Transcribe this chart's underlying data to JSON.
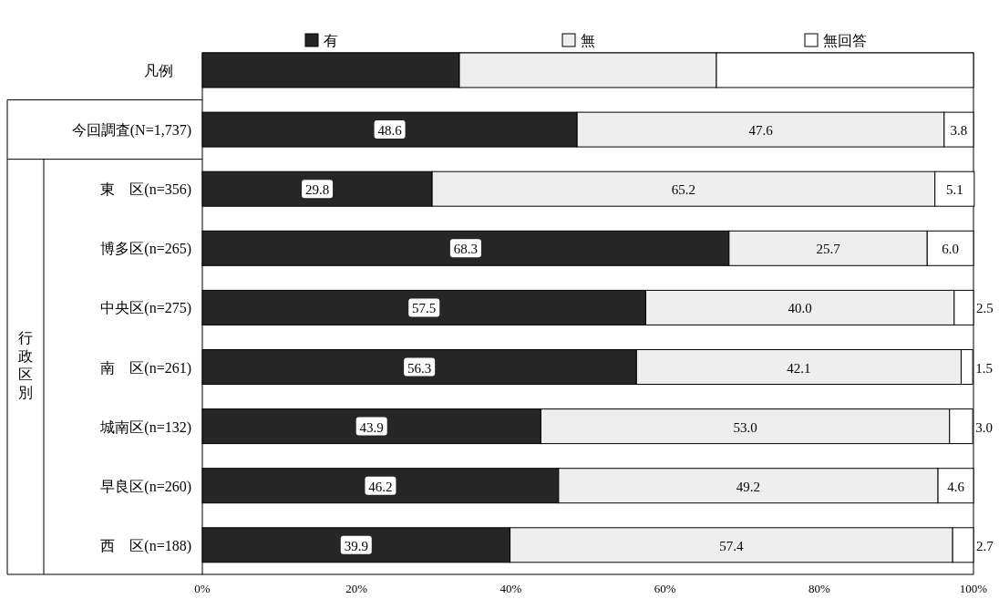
{
  "chart_data": {
    "type": "bar",
    "orientation": "horizontal",
    "stacked": true,
    "legend": "top",
    "legend_title": "凡例",
    "grid": false,
    "categories": [
      "今回調査(N=1,737)",
      "東　区(n=356)",
      "博多区(n=265)",
      "中央区(n=275)",
      "南　区(n=261)",
      "城南区(n=132)",
      "早良区(n=260)",
      "西　区(n=188)"
    ],
    "series": [
      {
        "name": "有",
        "color": "#262626",
        "values": [
          48.6,
          29.8,
          68.3,
          57.5,
          56.3,
          43.9,
          46.2,
          39.9
        ],
        "value_labels": [
          "48.6",
          "29.8",
          "68.3",
          "57.5",
          "56.3",
          "43.9",
          "46.2",
          "39.9"
        ]
      },
      {
        "name": "無",
        "color": "#eeeeee",
        "values": [
          47.6,
          65.2,
          25.7,
          40.0,
          42.1,
          53.0,
          49.2,
          57.4
        ],
        "value_labels": [
          "47.6",
          "65.2",
          "25.7",
          "40.0",
          "42.1",
          "53.0",
          "49.2",
          "57.4"
        ]
      },
      {
        "name": "無回答",
        "color": "#ffffff",
        "values": [
          3.8,
          5.1,
          6.0,
          2.5,
          1.5,
          3.0,
          4.6,
          2.7
        ],
        "value_labels": [
          "3.8",
          "5.1",
          "6.0",
          "2.5",
          "1.5",
          "3.0",
          "4.6",
          "2.7"
        ]
      }
    ],
    "xlim": [
      0,
      100
    ],
    "xticks": [
      {
        "value": 0,
        "label": "0%"
      },
      {
        "value": 20,
        "label": "20%"
      },
      {
        "value": 40,
        "label": "40%"
      },
      {
        "value": 60,
        "label": "60%"
      },
      {
        "value": 80,
        "label": "80%"
      },
      {
        "value": 100,
        "label": "100%"
      }
    ],
    "annotations": [
      "行政区別"
    ]
  }
}
